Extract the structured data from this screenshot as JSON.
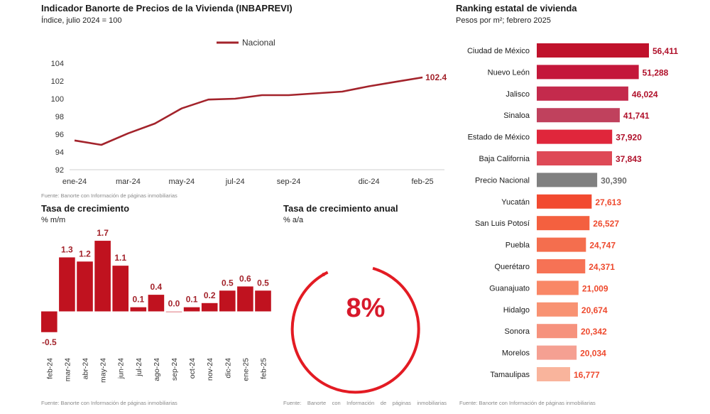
{
  "line_panel": {
    "title": "Indicador Banorte de Precios de la Vivienda (INBAPREVI)",
    "subtitle": "Índice, julio 2024 = 100",
    "source": "Fuente: Banorte con Información de páginas inmobiliarias"
  },
  "growth_panel": {
    "title": "Tasa de crecimiento",
    "subtitle": "% m/m",
    "source": "Fuente: Banorte con Información de páginas inmobiliarias"
  },
  "annual_panel": {
    "title": "Tasa de crecimiento anual",
    "subtitle": "% a/a",
    "value_label": "8%",
    "source": "Fuente: Banorte con Información de páginas inmobiliarias"
  },
  "ranking_panel": {
    "title": "Ranking estatal de vivienda",
    "subtitle": "Pesos por m²; febrero 2025",
    "source": "Fuente: Banorte con Información de páginas inmobiliarias"
  },
  "colors": {
    "line": "#a3232b",
    "growth_bar": "#c0121f",
    "gauge": "#e31b23",
    "axis": "#cfcfcf",
    "national_bar": "#808080"
  },
  "chart_data": [
    {
      "id": "inbaprevi",
      "type": "line",
      "series": [
        {
          "name": "Nacional",
          "x": [
            "ene-24",
            "feb-24",
            "mar-24",
            "abr-24",
            "may-24",
            "jun-24",
            "jul-24",
            "ago-24",
            "sep-24",
            "oct-24",
            "nov-24",
            "dic-24",
            "ene-25",
            "feb-25"
          ],
          "values": [
            95.3,
            94.8,
            96.1,
            97.2,
            98.9,
            99.9,
            100.0,
            100.4,
            100.4,
            100.6,
            100.8,
            101.4,
            101.9,
            102.4
          ]
        }
      ],
      "x_tick_labels": [
        "ene-24",
        "mar-24",
        "may-24",
        "jul-24",
        "sep-24",
        "dic-24",
        "feb-25"
      ],
      "x_tick_indices": [
        0,
        2,
        4,
        6,
        8,
        11,
        13
      ],
      "y_ticks": [
        92,
        94,
        96,
        98,
        100,
        102,
        104
      ],
      "ylim": [
        92,
        104
      ],
      "end_label": "102.4",
      "legend_position": "top-center"
    },
    {
      "id": "growth_mm",
      "type": "bar",
      "categories": [
        "feb-24",
        "mar-24",
        "abr-24",
        "may-24",
        "jun-24",
        "jul-24",
        "ago-24",
        "sep-24",
        "oct-24",
        "nov-24",
        "dic-24",
        "ene-25",
        "feb-25"
      ],
      "values": [
        -0.5,
        1.3,
        1.2,
        1.7,
        1.1,
        0.1,
        0.4,
        0.0,
        0.1,
        0.2,
        0.5,
        0.6,
        0.5
      ],
      "labels": [
        "-0.5",
        "1.3",
        "1.2",
        "1.7",
        "1.1",
        "0.1",
        "0.4",
        "0.0",
        "0.1",
        "0.2",
        "0.5",
        "0.6",
        "0.5"
      ],
      "ylim": [
        -0.6,
        1.8
      ]
    },
    {
      "id": "annual_growth",
      "type": "gauge",
      "value": 8,
      "unit": "%"
    },
    {
      "id": "state_ranking",
      "type": "bar",
      "orientation": "horizontal",
      "categories": [
        "Ciudad de México",
        "Nuevo León",
        "Jalisco",
        "Sinaloa",
        "Estado de México",
        "Baja California",
        "Precio Nacional",
        "Yucatán",
        "San Luis Potosí",
        "Puebla",
        "Querétaro",
        "Guanajuato",
        "Hidalgo",
        "Sonora",
        "Morelos",
        "Tamaulipas"
      ],
      "values": [
        56411,
        51288,
        46024,
        41741,
        37920,
        37843,
        30390,
        27613,
        26527,
        24747,
        24371,
        21009,
        20674,
        20342,
        20034,
        16777
      ],
      "labels": [
        "56,411",
        "51,288",
        "46,024",
        "41,741",
        "37,920",
        "37,843",
        "30,390",
        "27,613",
        "26,527",
        "24,747",
        "24,371",
        "21,009",
        "20,674",
        "20,342",
        "20,034",
        "16,777"
      ],
      "colors": [
        "#c0122c",
        "#c4173a",
        "#c42a4c",
        "#c0415d",
        "#e0263b",
        "#de4956",
        "#808080",
        "#f24a30",
        "#f4603f",
        "#f46e4e",
        "#f67255",
        "#f98766",
        "#f89272",
        "#f6927d",
        "#f5a092",
        "#f9b49c"
      ],
      "label_colors": [
        "#b0102a",
        "#b0102a",
        "#b0102a",
        "#b0102a",
        "#b0102a",
        "#b0102a",
        "#6e6e6e",
        "#ee4a2e",
        "#ee4a2e",
        "#ee4a2e",
        "#ee4a2e",
        "#ee4a2e",
        "#ee4a2e",
        "#ee4a2e",
        "#ee4a2e",
        "#ee4a2e"
      ],
      "xlim": [
        0,
        56411
      ]
    }
  ]
}
